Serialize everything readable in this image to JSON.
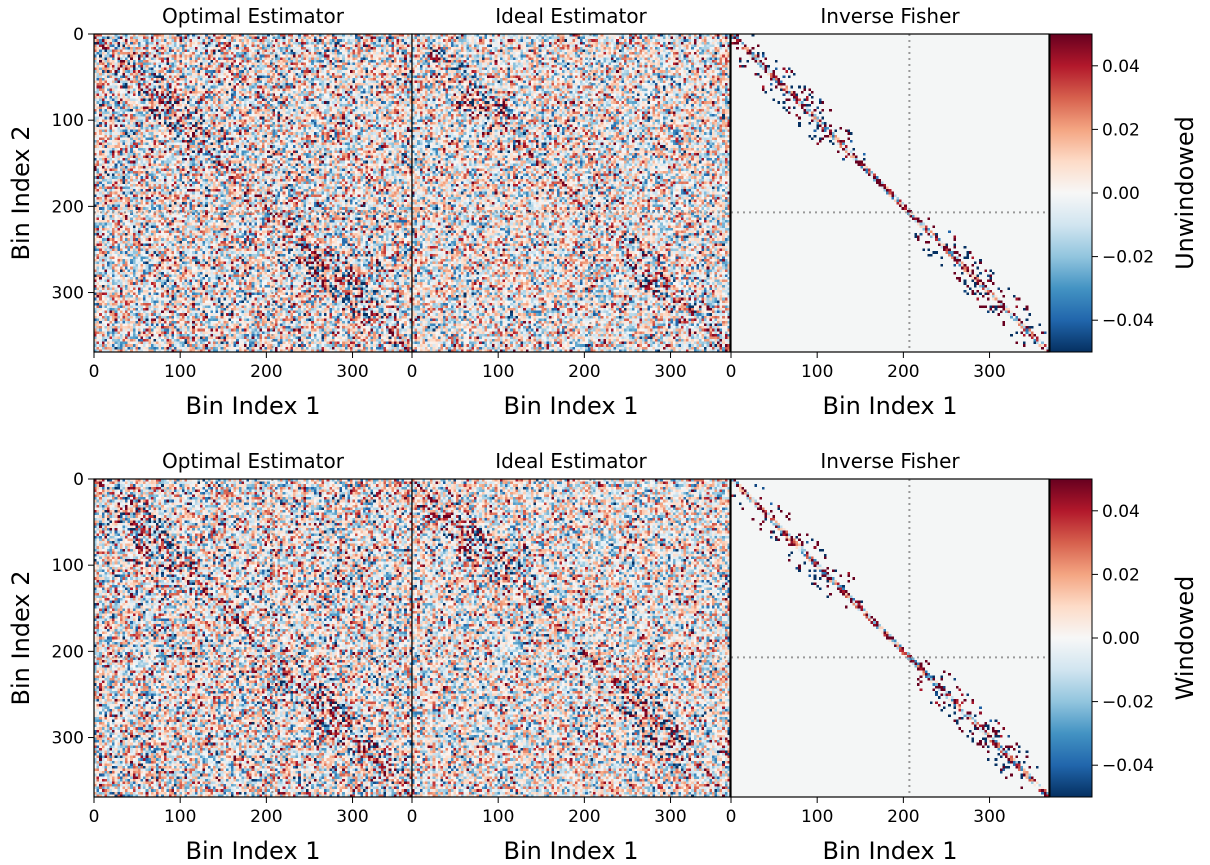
{
  "chart_data": {
    "type": "heatmap",
    "matrix_size": 369,
    "value_range": [
      -0.05,
      0.05
    ],
    "colormap": "RdBu_r",
    "colorbar_ticks": [
      {
        "value": 0.04,
        "label": "0.04"
      },
      {
        "value": 0.02,
        "label": "0.02"
      },
      {
        "value": 0.0,
        "label": "0.00"
      },
      {
        "value": -0.02,
        "label": "−0.02"
      },
      {
        "value": -0.04,
        "label": "−0.04"
      }
    ],
    "axis_ticks": [
      {
        "value": 0,
        "label": "0"
      },
      {
        "value": 100,
        "label": "100"
      },
      {
        "value": 200,
        "label": "200"
      },
      {
        "value": 300,
        "label": "300"
      }
    ],
    "divider_index": 207,
    "xlabel": "Bin Index 1",
    "ylabel": "Bin Index 2",
    "rows": [
      {
        "colorbar_label": "Unwindowed",
        "panels": [
          {
            "title": "Optimal Estimator",
            "noise": 0.022,
            "diagonal": 0.045
          },
          {
            "title": "Ideal Estimator",
            "noise": 0.02,
            "diagonal": 0.04
          },
          {
            "title": "Inverse Fisher",
            "noise": 0.0,
            "diagonal": 0.05
          }
        ]
      },
      {
        "colorbar_label": "Windowed",
        "panels": [
          {
            "title": "Optimal Estimator",
            "noise": 0.022,
            "diagonal": 0.045
          },
          {
            "title": "Ideal Estimator",
            "noise": 0.02,
            "diagonal": 0.045
          },
          {
            "title": "Inverse Fisher",
            "noise": 0.0,
            "diagonal": 0.05
          }
        ]
      }
    ]
  }
}
